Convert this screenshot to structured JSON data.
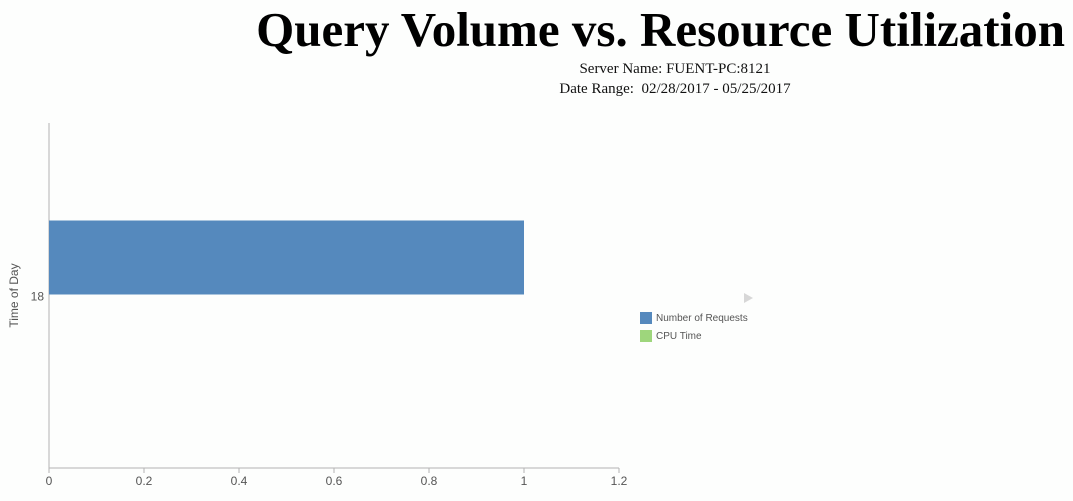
{
  "header": {
    "title": "Query Volume vs. Resource Utilization",
    "server_line": "Server Name: FUENT-PC:8121",
    "date_line": "Date Range:  02/28/2017 - 05/25/2017"
  },
  "chart_data": {
    "type": "bar",
    "orientation": "horizontal",
    "title": "Query Volume vs. Resource Utilization",
    "ylabel": "Time of Day",
    "xlabel": "",
    "categories": [
      "18"
    ],
    "series": [
      {
        "name": "Number of Requests",
        "values": [
          1
        ],
        "color": "#5589bd"
      },
      {
        "name": "CPU Time",
        "values": [
          0
        ],
        "color": "#9ed67c"
      }
    ],
    "xlim": [
      0,
      1.2
    ],
    "xticks": [
      "0",
      "0.2",
      "0.4",
      "0.6",
      "0.8",
      "1",
      "1.2"
    ],
    "grid": false,
    "legend_position": "right"
  }
}
